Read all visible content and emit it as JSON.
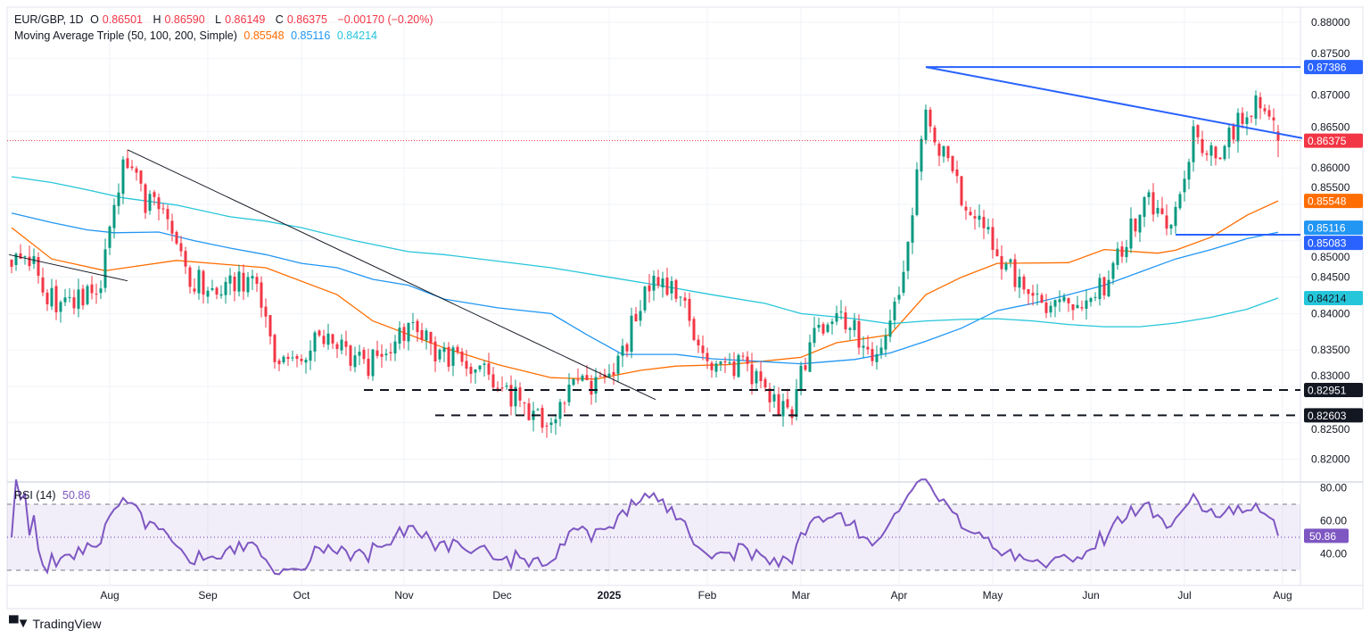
{
  "header": {
    "symbol": "EUR/GBP, 1D",
    "open_label": "O",
    "open": "0.86501",
    "high_label": "H",
    "high": "0.86590",
    "low_label": "L",
    "low": "0.86149",
    "close_label": "C",
    "close": "0.86375",
    "change": "−0.00170 (−0.20%)",
    "ma_title": "Moving Average Triple (50, 100, 200, Simple)",
    "ma50": "0.85548",
    "ma100": "0.85116",
    "ma200": "0.84214",
    "rsi_title": "RSI (14)",
    "rsi_value": "50.86"
  },
  "branding": {
    "logo": "TradingView"
  },
  "colors": {
    "up": "#089981",
    "down": "#f23645",
    "ma50": "#ff6d00",
    "ma100": "#2196f3",
    "ma200": "#26c6da",
    "trend_blue": "#2962ff",
    "rsi": "#7e57c2",
    "dark": "#131722"
  },
  "chart_data": {
    "type": "candlestick",
    "title": "EUR/GBP, 1D",
    "ylim": [
      0.815,
      0.882
    ],
    "price_ticks": [
      "0.88000",
      "0.87500",
      "0.87000",
      "0.86500",
      "0.86000",
      "0.85500",
      "0.85000",
      "0.84500",
      "0.84000",
      "0.83500",
      "0.83000",
      "0.82500",
      "0.82000"
    ],
    "time_labels": [
      {
        "label": "Aug",
        "bar": 22
      },
      {
        "label": "Sep",
        "bar": 44
      },
      {
        "label": "Oct",
        "bar": 65
      },
      {
        "label": "Nov",
        "bar": 88
      },
      {
        "label": "Dec",
        "bar": 110
      },
      {
        "label": "2025",
        "bar": 134
      },
      {
        "label": "Feb",
        "bar": 156
      },
      {
        "label": "Mar",
        "bar": 177
      },
      {
        "label": "Apr",
        "bar": 199
      },
      {
        "label": "May",
        "bar": 220
      },
      {
        "label": "Jun",
        "bar": 242
      },
      {
        "label": "Jul",
        "bar": 263
      },
      {
        "label": "Aug",
        "bar": 285
      }
    ],
    "bars": 285,
    "weekly_closes": [
      0.8481,
      0.8463,
      0.8408,
      0.842,
      0.8439,
      0.8616,
      0.8555,
      0.853,
      0.845,
      0.8439,
      0.8445,
      0.8433,
      0.8328,
      0.8347,
      0.8371,
      0.8347,
      0.833,
      0.8347,
      0.84,
      0.835,
      0.834,
      0.833,
      0.83,
      0.827,
      0.825,
      0.83,
      0.83,
      0.831,
      0.84,
      0.845,
      0.842,
      0.833,
      0.8325,
      0.833,
      0.828,
      0.8265,
      0.838,
      0.84,
      0.837,
      0.834,
      0.844,
      0.868,
      0.86,
      0.8537,
      0.8494,
      0.845,
      0.842,
      0.841,
      0.842,
      0.844,
      0.8506,
      0.856,
      0.8525,
      0.864,
      0.862,
      0.8665,
      0.869,
      0.8638
    ],
    "last_bar": {
      "open": 0.86501,
      "high": 0.8659,
      "low": 0.86149,
      "close": 0.86375
    },
    "moving_averages": [
      {
        "name": "SMA 50",
        "color_key": "ma50",
        "last": 0.85548,
        "points": [
          [
            0,
            0.8518
          ],
          [
            9,
            0.8475
          ],
          [
            21,
            0.8459
          ],
          [
            37,
            0.8473
          ],
          [
            57,
            0.8463
          ],
          [
            73,
            0.8426
          ],
          [
            81,
            0.839
          ],
          [
            97,
            0.8353
          ],
          [
            109,
            0.833
          ],
          [
            121,
            0.8312
          ],
          [
            131,
            0.831
          ],
          [
            141,
            0.8322
          ],
          [
            149,
            0.8328
          ],
          [
            161,
            0.833
          ],
          [
            177,
            0.834
          ],
          [
            185,
            0.836
          ],
          [
            197,
            0.8371
          ],
          [
            205,
            0.8426
          ],
          [
            213,
            0.845
          ],
          [
            221,
            0.8469
          ],
          [
            237,
            0.847
          ],
          [
            245,
            0.8488
          ],
          [
            257,
            0.8483
          ],
          [
            261,
            0.8487
          ],
          [
            269,
            0.8505
          ],
          [
            277,
            0.8535
          ],
          [
            284,
            0.85548
          ]
        ]
      },
      {
        "name": "SMA 100",
        "color_key": "ma100",
        "last": 0.85116,
        "points": [
          [
            0,
            0.8538
          ],
          [
            9,
            0.8525
          ],
          [
            17,
            0.8515
          ],
          [
            23,
            0.8511
          ],
          [
            33,
            0.8512
          ],
          [
            41,
            0.85
          ],
          [
            49,
            0.849
          ],
          [
            57,
            0.8481
          ],
          [
            65,
            0.8469
          ],
          [
            73,
            0.8463
          ],
          [
            81,
            0.8447
          ],
          [
            89,
            0.8439
          ],
          [
            97,
            0.842
          ],
          [
            109,
            0.8408
          ],
          [
            121,
            0.84
          ],
          [
            129,
            0.8371
          ],
          [
            137,
            0.8344
          ],
          [
            149,
            0.8344
          ],
          [
            157,
            0.8338
          ],
          [
            169,
            0.8334
          ],
          [
            177,
            0.8331
          ],
          [
            189,
            0.8337
          ],
          [
            197,
            0.8346
          ],
          [
            205,
            0.8362
          ],
          [
            213,
            0.838
          ],
          [
            221,
            0.8404
          ],
          [
            229,
            0.8414
          ],
          [
            237,
            0.8426
          ],
          [
            245,
            0.8439
          ],
          [
            253,
            0.8457
          ],
          [
            261,
            0.8475
          ],
          [
            269,
            0.8488
          ],
          [
            277,
            0.8503
          ],
          [
            284,
            0.85116
          ]
        ]
      },
      {
        "name": "SMA 200",
        "color_key": "ma200",
        "last": 0.84214,
        "points": [
          [
            0,
            0.8588
          ],
          [
            9,
            0.858
          ],
          [
            17,
            0.857
          ],
          [
            25,
            0.8559
          ],
          [
            37,
            0.8549
          ],
          [
            49,
            0.8533
          ],
          [
            57,
            0.8527
          ],
          [
            65,
            0.8518
          ],
          [
            77,
            0.85
          ],
          [
            89,
            0.8485
          ],
          [
            97,
            0.8481
          ],
          [
            109,
            0.8472
          ],
          [
            121,
            0.8463
          ],
          [
            133,
            0.8451
          ],
          [
            145,
            0.8439
          ],
          [
            157,
            0.8426
          ],
          [
            169,
            0.8414
          ],
          [
            177,
            0.84
          ],
          [
            189,
            0.8393
          ],
          [
            197,
            0.8386
          ],
          [
            205,
            0.839
          ],
          [
            213,
            0.8392
          ],
          [
            221,
            0.8393
          ],
          [
            229,
            0.839
          ],
          [
            237,
            0.8385
          ],
          [
            245,
            0.8382
          ],
          [
            253,
            0.8382
          ],
          [
            261,
            0.8387
          ],
          [
            269,
            0.8395
          ],
          [
            277,
            0.8406
          ],
          [
            284,
            0.84214
          ]
        ]
      }
    ],
    "drawings": [
      {
        "kind": "trend",
        "color_key": "dark",
        "from": [
          -0.6,
          0.8481
        ],
        "to": [
          26,
          0.8445
        ]
      },
      {
        "kind": "trend",
        "color_key": "dark",
        "from": [
          26,
          0.8625
        ],
        "to": [
          144.4,
          0.8282
        ]
      },
      {
        "kind": "trend",
        "color_key": "trend_blue",
        "from": [
          205,
          0.87386
        ],
        "to": [
          289.4,
          0.8641
        ]
      },
      {
        "kind": "horizontal",
        "color_key": "trend_blue",
        "price": 0.87386,
        "from_bar": 205
      },
      {
        "kind": "horizontal",
        "color_key": "trend_blue",
        "price": 0.85083,
        "from_bar": 261
      },
      {
        "kind": "dashed",
        "color_key": "dark",
        "price": 0.82951,
        "from_bar": 79
      },
      {
        "kind": "dashed",
        "color_key": "dark",
        "price": 0.82603,
        "from_bar": 95
      }
    ],
    "price_badges": [
      {
        "text": "0.87386",
        "price": 0.87386,
        "bg": "#2962ff",
        "fg": "#ffffff"
      },
      {
        "text": "0.86375",
        "price": 0.86375,
        "bg": "#f23645",
        "fg": "#ffffff"
      },
      {
        "text": "0.85548",
        "price": 0.85548,
        "bg": "#ff6d00",
        "fg": "#ffffff"
      },
      {
        "text": "0.85116",
        "price": 0.8518,
        "bg": "#2196f3",
        "fg": "#ffffff"
      },
      {
        "text": "0.85083",
        "price": 0.85,
        "bg": "#2962ff",
        "fg": "#ffffff"
      },
      {
        "text": "0.84214",
        "price": 0.84214,
        "bg": "#26c6da",
        "fg": "#131722"
      },
      {
        "text": "0.82951",
        "price": 0.82951,
        "bg": "#131722",
        "fg": "#ffffff"
      },
      {
        "text": "0.82603",
        "price": 0.82603,
        "bg": "#131722",
        "fg": "#ffffff"
      }
    ],
    "rsi": {
      "period": 14,
      "ticks": [
        "80.00",
        "60.00",
        "40.00"
      ],
      "upper": 70,
      "lower": 30,
      "mid": 50,
      "last": 50.86,
      "last_text": "50.86"
    }
  }
}
